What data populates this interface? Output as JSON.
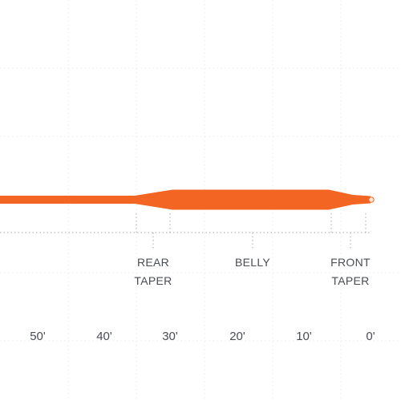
{
  "line_color": "#f26522",
  "line_tip_color": "#fde6d8",
  "section_labels": [
    {
      "lines": [
        "REAR",
        "TAPER"
      ]
    },
    {
      "lines": [
        "BELLY"
      ]
    },
    {
      "lines": [
        "FRONT",
        "TAPER"
      ]
    }
  ],
  "distance_ticks": [
    "50'",
    "40'",
    "30'",
    "20'",
    "10'",
    "0'"
  ]
}
